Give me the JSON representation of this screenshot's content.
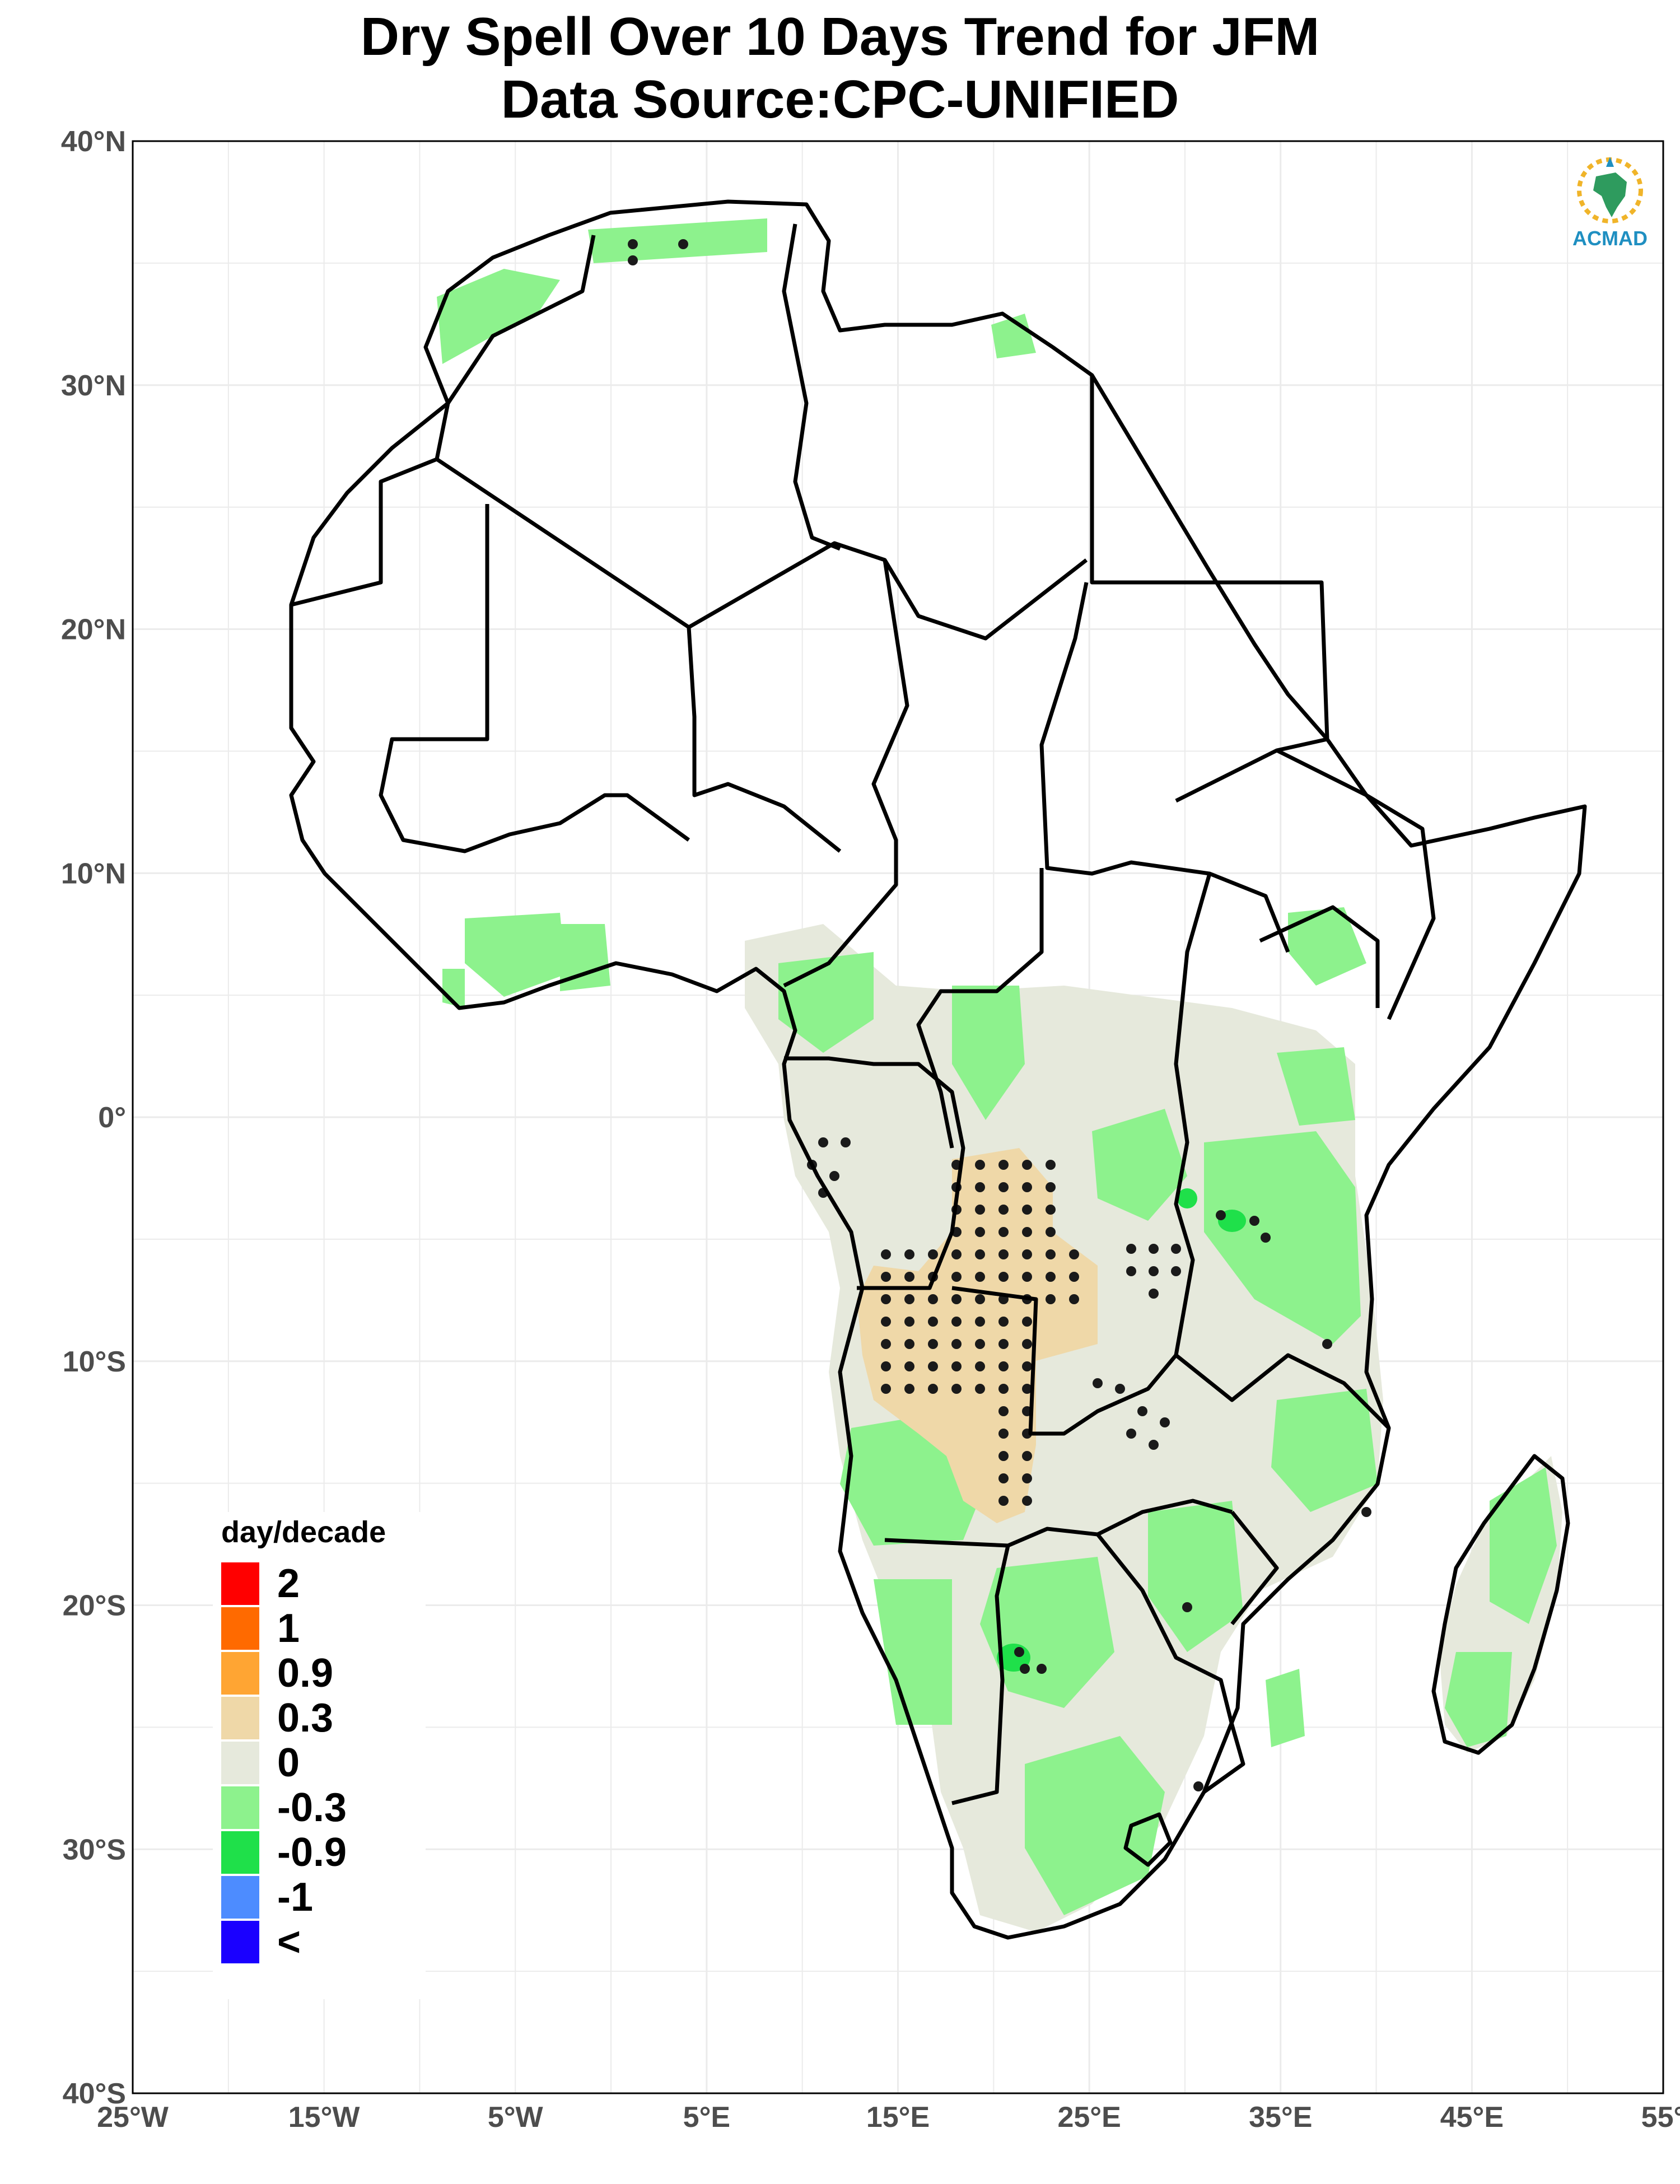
{
  "title_line1": "Dry Spell Over 10 Days Trend for JFM",
  "title_line2": "Data Source:CPC-UNIFIED",
  "logo": {
    "text": "ACMAD",
    "icon": "africa-sun-logo-icon"
  },
  "axes": {
    "x_ticks": [
      "25°W",
      "15°W",
      "5°W",
      "5°E",
      "15°E",
      "25°E",
      "35°E",
      "45°E",
      "55°"
    ],
    "y_ticks": [
      "40°N",
      "30°N",
      "20°N",
      "10°N",
      "0°",
      "10°S",
      "20°S",
      "30°S",
      "40°S"
    ]
  },
  "legend": {
    "title": "day/decade",
    "items": [
      {
        "label": "2",
        "color": "#ff0000"
      },
      {
        "label": "1",
        "color": "#ff6a00"
      },
      {
        "label": "0.9",
        "color": "#ffa533"
      },
      {
        "label": "0.3",
        "color": "#efd8a8"
      },
      {
        "label": "0",
        "color": "#e6e9dc"
      },
      {
        "label": "-0.3",
        "color": "#8df28d"
      },
      {
        "label": "-0.9",
        "color": "#1fe04a"
      },
      {
        "label": "-1",
        "color": "#4d8cff"
      },
      {
        "label": "<",
        "color": "#1a00ff"
      }
    ]
  },
  "colors": {
    "land_outline": "#000000",
    "grid": "#ebebeb",
    "stipple": "#1a1a1a"
  }
}
